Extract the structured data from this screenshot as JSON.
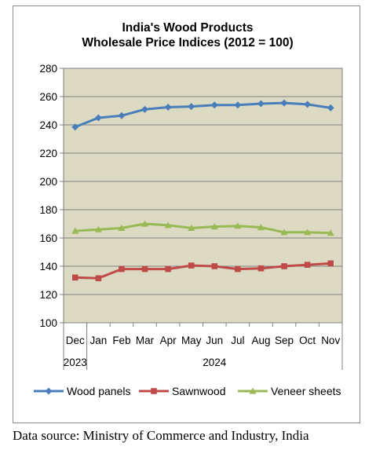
{
  "chart_data": {
    "type": "line",
    "title_lines": [
      "India's Wood Products",
      "Wholesale Price Indices (2012 = 100)"
    ],
    "categories": [
      "Dec",
      "Jan",
      "Feb",
      "Mar",
      "Apr",
      "May",
      "Jun",
      "Jul",
      "Aug",
      "Sep",
      "Oct",
      "Nov"
    ],
    "year_groups": [
      {
        "label": "2023",
        "categories": [
          "Dec"
        ]
      },
      {
        "label": "2024",
        "categories": [
          "Jan",
          "Feb",
          "Mar",
          "Apr",
          "May",
          "Jun",
          "Jul",
          "Aug",
          "Sep",
          "Oct",
          "Nov"
        ]
      }
    ],
    "ylim": [
      100,
      280
    ],
    "yticks": [
      "100",
      "120",
      "140",
      "160",
      "180",
      "200",
      "220",
      "240",
      "260",
      "280"
    ],
    "grid": true,
    "plot_background": "#dddac3",
    "legend_position": "bottom",
    "series": [
      {
        "name": "Wood panels",
        "color": "#4a7ebb",
        "marker": "diamond",
        "values": [
          238.5,
          245,
          246.5,
          251,
          252.5,
          253,
          254,
          254,
          255,
          255.5,
          254.5,
          252
        ]
      },
      {
        "name": "Sawnwood",
        "color": "#be4b48",
        "marker": "square",
        "values": [
          132,
          131.5,
          138,
          138,
          138,
          140.5,
          140,
          138,
          138.5,
          140,
          141,
          142
        ]
      },
      {
        "name": "Veneer sheets",
        "color": "#98b954",
        "marker": "triangle",
        "values": [
          165,
          166,
          167,
          170,
          169,
          167,
          168,
          168.5,
          167.5,
          164,
          164,
          163.5
        ]
      }
    ]
  },
  "source_text": "Data source: Ministry of Commerce and Industry, India"
}
